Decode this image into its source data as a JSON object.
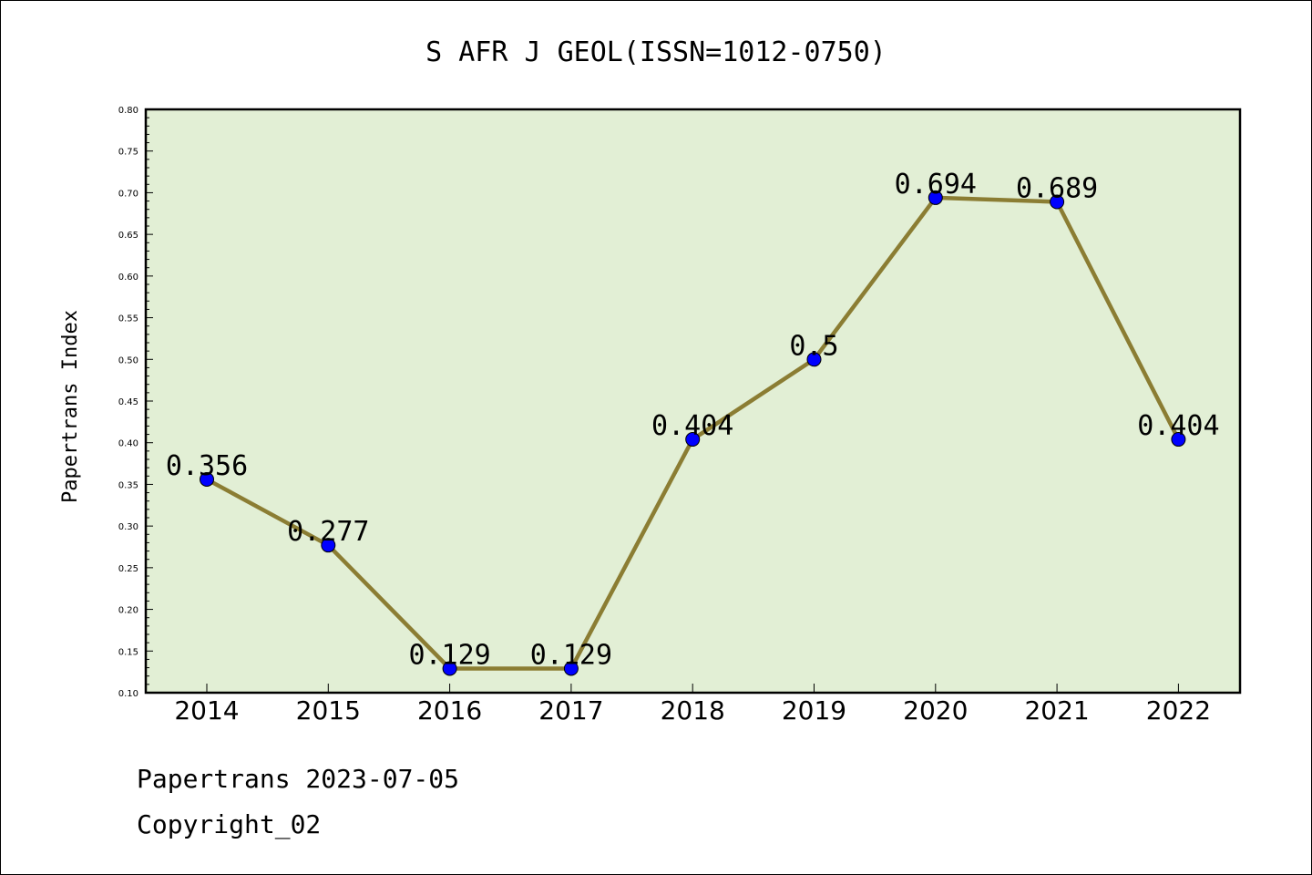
{
  "chart_data": {
    "type": "line",
    "title": "S AFR J GEOL(ISSN=1012-0750)",
    "ylabel": "Papertrans Index",
    "xlabel": "",
    "categories": [
      "2014",
      "2015",
      "2016",
      "2017",
      "2018",
      "2019",
      "2020",
      "2021",
      "2022"
    ],
    "values": [
      0.356,
      0.277,
      0.129,
      0.129,
      0.404,
      0.5,
      0.694,
      0.689,
      0.404
    ],
    "data_labels": [
      "0.356",
      "0.277",
      "0.129",
      "0.129",
      "0.404",
      "0.5",
      "0.694",
      "0.689",
      "0.404"
    ],
    "ylim": [
      0.1,
      0.8
    ],
    "yticks": [
      "0.10",
      "0.15",
      "0.20",
      "0.25",
      "0.30",
      "0.35",
      "0.40",
      "0.45",
      "0.50",
      "0.55",
      "0.60",
      "0.65",
      "0.70",
      "0.75",
      "0.80"
    ],
    "grid": false,
    "colors": {
      "plot_background": "#e2efd5",
      "line": "#8b7d33",
      "marker": "#0000ff"
    }
  },
  "footer": {
    "line1": "Papertrans 2023-07-05",
    "line2": "Copyright_02"
  }
}
